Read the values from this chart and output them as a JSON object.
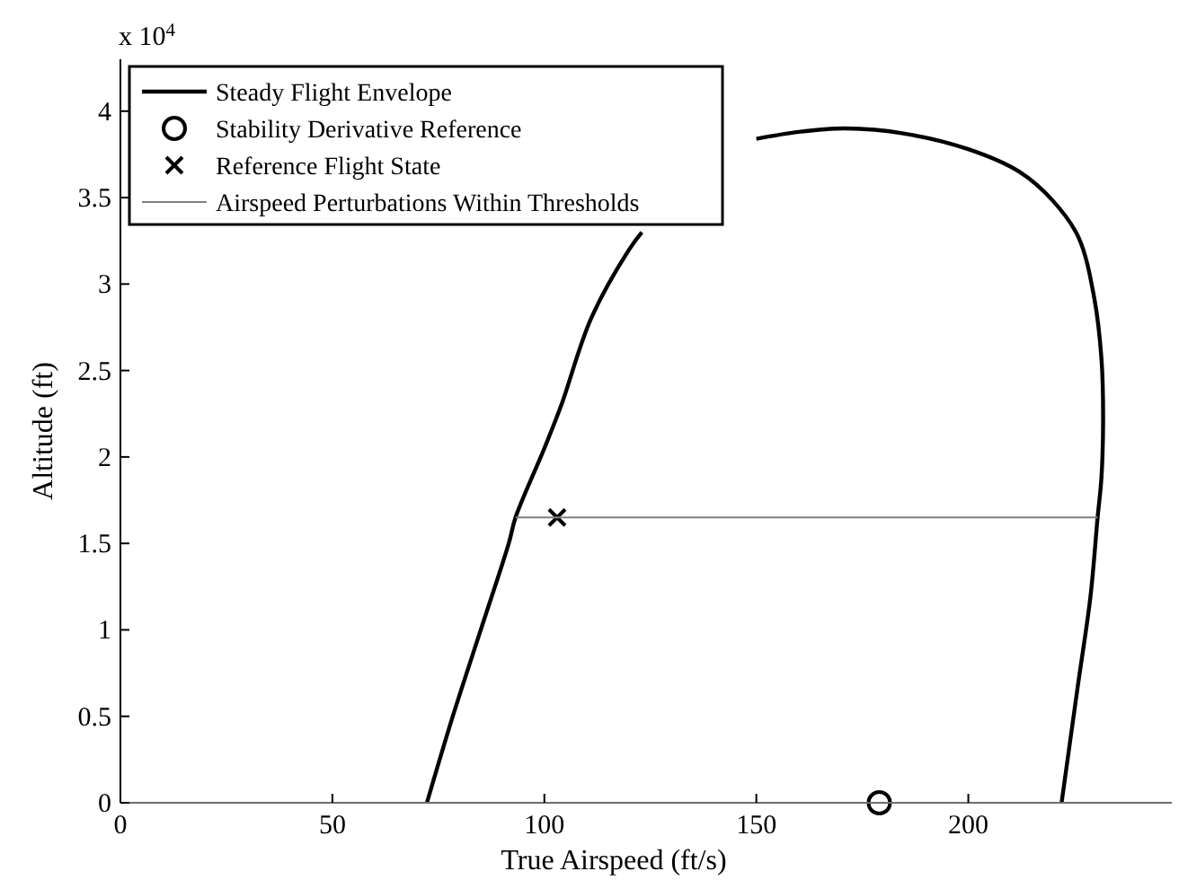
{
  "chart_data": {
    "type": "line",
    "xlabel": "True Airspeed (ft/s)",
    "ylabel": "Altitude (ft)",
    "annotations": [
      "x 10$^{4}$"
    ],
    "xlim": [
      0,
      248
    ],
    "xticks": [
      0,
      50,
      100,
      150,
      200
    ],
    "ylim": [
      0,
      4.3
    ],
    "yticks": [
      0,
      0.5,
      1,
      1.5,
      2,
      2.5,
      3,
      3.5,
      4
    ],
    "grid": false,
    "legend": "top left",
    "series": [
      {
        "name": "Steady Flight Envelope",
        "color": "#000000",
        "marker": "none",
        "x": [
          72.3,
          78.4,
          85,
          91.6,
          93.2,
          100,
          104,
          111,
          120,
          123,
          130,
          145,
          150,
          160,
          171,
          185,
          200,
          212,
          220,
          226,
          229.7,
          231.4,
          231.8,
          231.4,
          230.5,
          228.8,
          225.8,
          222
        ],
        "values": [
          0,
          0.5,
          1,
          1.5,
          1.65,
          2.05,
          2.3,
          2.8,
          3.2,
          3.3,
          null,
          null,
          3.84,
          3.88,
          3.9,
          3.87,
          3.78,
          3.65,
          3.48,
          3.27,
          2.92,
          2.57,
          2.23,
          1.88,
          1.65,
          1.19,
          0.67,
          0
        ]
      },
      {
        "name": "Stability Derivative Reference",
        "type": "scatter",
        "color": "#000000",
        "marker": "circle",
        "x": [
          179
        ],
        "values": [
          0
        ]
      },
      {
        "name": "Reference Flight State",
        "type": "scatter",
        "color": "#000000",
        "marker": "cross",
        "x": [
          103
        ],
        "values": [
          1.65
        ]
      },
      {
        "name": "Airspeed Perturbations Within Thresholds",
        "color": "#808080",
        "marker": "none",
        "x": [
          93.2,
          230.5
        ],
        "values": [
          1.65,
          1.65
        ]
      }
    ]
  }
}
